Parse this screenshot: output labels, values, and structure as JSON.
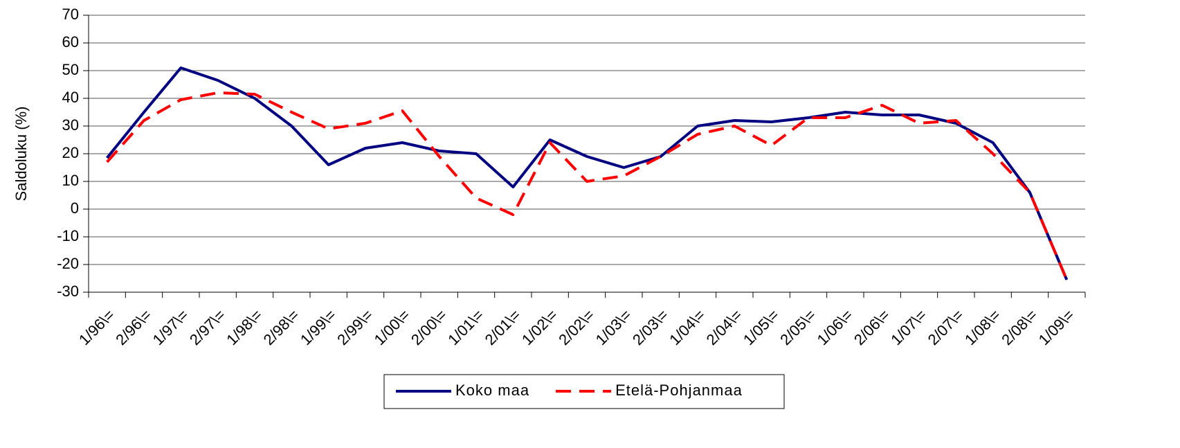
{
  "chart_data": {
    "type": "line",
    "y_label": "Saldoluku (%)",
    "categories": [
      "1/96\\=",
      "2/96\\=",
      "1/97\\=",
      "2/97\\=",
      "1/98\\=",
      "2/98\\=",
      "1/99\\=",
      "2/99\\=",
      "1/00\\=",
      "2/00\\=",
      "1/01\\=",
      "2/01\\=",
      "1/02\\=",
      "2/02\\=",
      "1/03\\=",
      "2/03\\=",
      "1/04\\=",
      "2/04\\=",
      "1/05\\=",
      "2/05\\=",
      "1/06\\=",
      "2/06\\=",
      "1/07\\=",
      "2/07\\=",
      "1/08\\=",
      "2/08\\=",
      "1/09\\="
    ],
    "series": [
      {
        "name": "Koko maa",
        "color": "#000080",
        "dash": "solid",
        "values": [
          18.5,
          35,
          51,
          46.5,
          40,
          30,
          16,
          22,
          24,
          21,
          20,
          8,
          25,
          19,
          15,
          19,
          30,
          32,
          31.5,
          33,
          35,
          34,
          34,
          31,
          24,
          6,
          -25.5
        ]
      },
      {
        "name": "Etelä-Pohjanmaa",
        "color": "#ff0000",
        "dash": "dashed",
        "values": [
          17,
          32,
          39.5,
          42,
          41.5,
          35,
          29,
          31,
          35.5,
          19,
          4,
          -2,
          24,
          10,
          12,
          19,
          27,
          30,
          23,
          33,
          33,
          37.5,
          31,
          32,
          20,
          6,
          -25.5
        ]
      }
    ],
    "ylim": [
      -30,
      70
    ],
    "yticks": [
      -30,
      -20,
      -10,
      0,
      10,
      20,
      30,
      40,
      50,
      60,
      70
    ],
    "grid": true,
    "legend": "bottom"
  }
}
